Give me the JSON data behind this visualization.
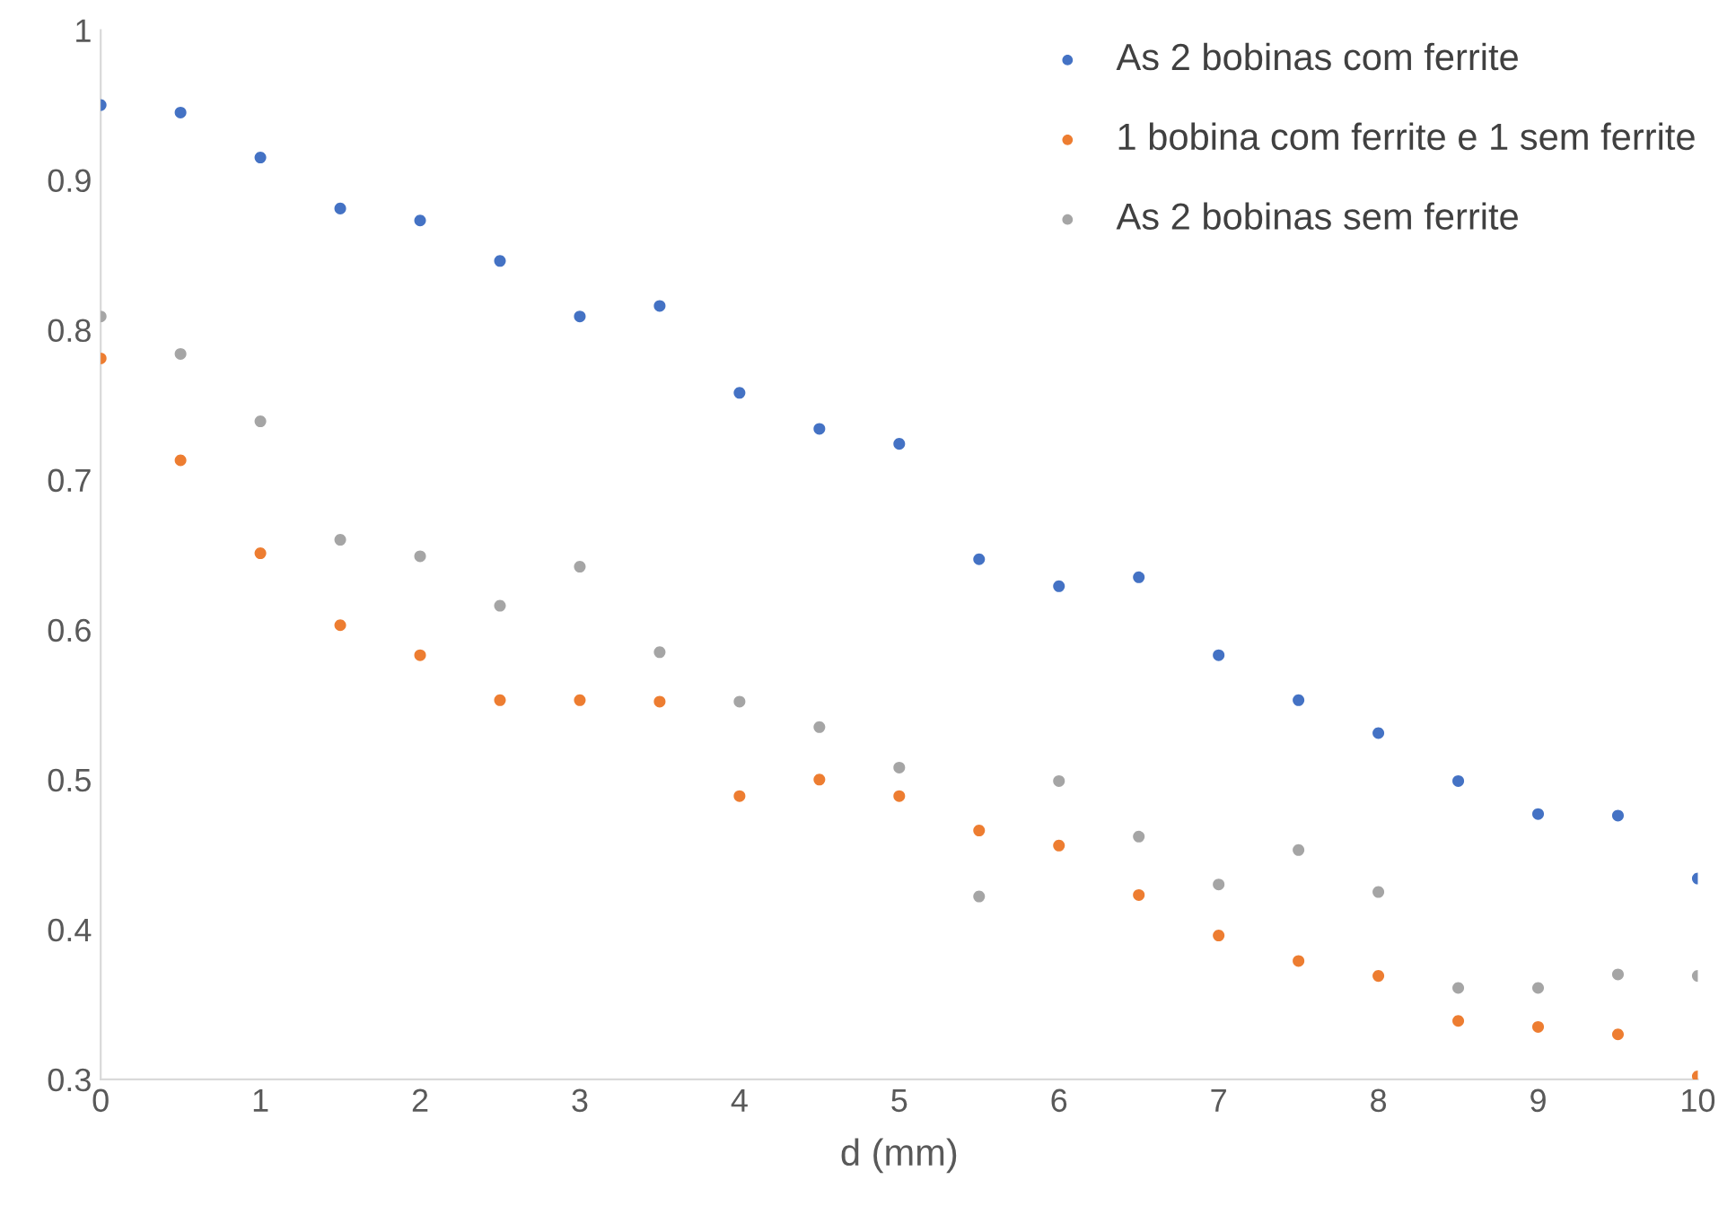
{
  "chart_data": {
    "type": "scatter",
    "xlabel": "d (mm)",
    "x": [
      0,
      0.5,
      1,
      1.5,
      2,
      2.5,
      3,
      3.5,
      4,
      4.5,
      5,
      5.5,
      6,
      6.5,
      7,
      7.5,
      8,
      8.5,
      9,
      9.5,
      10
    ],
    "series": [
      {
        "name": "As 2 bobinas com ferrite",
        "color": "#4472c4",
        "values": [
          0.95,
          0.945,
          0.915,
          0.881,
          0.873,
          0.846,
          0.809,
          0.816,
          0.758,
          0.734,
          0.724,
          0.647,
          0.629,
          0.635,
          0.583,
          0.553,
          0.531,
          0.499,
          0.477,
          0.476,
          0.434
        ]
      },
      {
        "name": "1 bobina com ferrite e 1 sem ferrite",
        "color": "#ed7d31",
        "values": [
          0.781,
          0.713,
          0.651,
          0.603,
          0.583,
          0.553,
          0.553,
          0.552,
          0.489,
          0.5,
          0.489,
          0.466,
          0.456,
          0.423,
          0.396,
          0.379,
          0.369,
          0.339,
          0.335,
          0.33,
          0.302
        ]
      },
      {
        "name": "As 2 bobinas sem ferrite",
        "color": "#a5a5a5",
        "values": [
          0.809,
          0.784,
          0.739,
          0.66,
          0.649,
          0.616,
          0.642,
          0.585,
          0.552,
          0.535,
          0.508,
          0.422,
          0.499,
          0.462,
          0.43,
          0.453,
          0.425,
          0.361,
          0.361,
          0.37,
          0.369
        ]
      }
    ],
    "xlim": [
      0,
      10
    ],
    "xticks": [
      0,
      1,
      2,
      3,
      4,
      5,
      6,
      7,
      8,
      9,
      10
    ],
    "ylim": [
      0.3,
      1
    ],
    "yticks": [
      0.3,
      0.4,
      0.5,
      0.6,
      0.7,
      0.8,
      0.9,
      1
    ],
    "grid": false,
    "legend": "top right",
    "marker": "circle"
  }
}
